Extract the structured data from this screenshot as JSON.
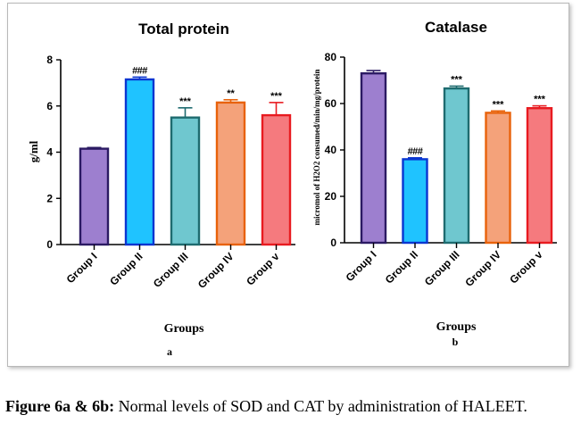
{
  "caption": {
    "label": "Figure 6a & 6b:",
    "text": "Normal levels of SOD and CAT by administration of HALEET."
  },
  "chart_data": [
    {
      "type": "bar",
      "title": "Total protein",
      "xlabel": "Groups",
      "ylabel": "g/ml",
      "panel_label": "a",
      "ylim": [
        0,
        8
      ],
      "yticks": [
        "0",
        "2",
        "4",
        "6",
        "8"
      ],
      "categories": [
        "Group I",
        "Group II",
        "Group III",
        "Group IV",
        "Group v"
      ],
      "values": [
        4.15,
        7.15,
        5.5,
        6.15,
        5.6
      ],
      "errors": [
        0.05,
        0.1,
        0.42,
        0.12,
        0.55
      ],
      "annotations": [
        "",
        "###",
        "***",
        "**",
        "***"
      ],
      "fill_colors": [
        "#9d7fcf",
        "#1fc3ff",
        "#6fc7cf",
        "#f4a27a",
        "#f57a7e"
      ],
      "edge_colors": [
        "#2b1a63",
        "#0a36d1",
        "#1e6b6f",
        "#e8620a",
        "#e81b20"
      ]
    },
    {
      "type": "bar",
      "title": "Catalase",
      "xlabel": "Groups",
      "ylabel": "micromol of H2O2 consumed/min/mg/protein",
      "panel_label": "b",
      "ylim": [
        0,
        80
      ],
      "yticks": [
        "0",
        "20",
        "40",
        "60",
        "80"
      ],
      "categories": [
        "Group I",
        "Group II",
        "Group III",
        "Group IV",
        "Group v"
      ],
      "values": [
        73,
        36,
        66.5,
        56,
        58
      ],
      "errors": [
        1.2,
        0.6,
        1.0,
        0.8,
        1.0
      ],
      "annotations": [
        "",
        "###",
        "***",
        "***",
        "***"
      ],
      "fill_colors": [
        "#9d7fcf",
        "#1fc3ff",
        "#6fc7cf",
        "#f4a27a",
        "#f57a7e"
      ],
      "edge_colors": [
        "#2b1a63",
        "#0a36d1",
        "#1e6b6f",
        "#e8620a",
        "#e81b20"
      ]
    }
  ]
}
